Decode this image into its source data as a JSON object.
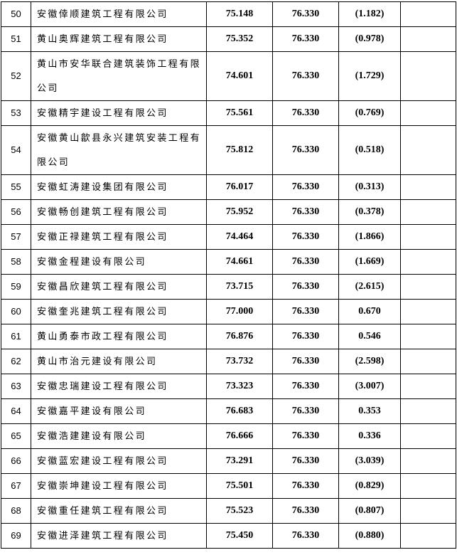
{
  "table": {
    "rows": [
      [
        "50",
        "安徽倖顺建筑工程有限公司",
        "75.148",
        "76.330",
        "(1.182)"
      ],
      [
        "51",
        "黄山奥辉建筑工程有限公司",
        "75.352",
        "76.330",
        "(0.978)"
      ],
      [
        "52",
        "黄山市安华联合建筑装饰工程有限公司",
        "74.601",
        "76.330",
        "(1.729)"
      ],
      [
        "53",
        "安徽精宇建设工程有限公司",
        "75.561",
        "76.330",
        "(0.769)"
      ],
      [
        "54",
        "安徽黄山歙县永兴建筑安装工程有限公司",
        "75.812",
        "76.330",
        "(0.518)"
      ],
      [
        "55",
        "安徽虹涛建设集团有限公司",
        "76.017",
        "76.330",
        "(0.313)"
      ],
      [
        "56",
        "安徽畅创建筑工程有限公司",
        "75.952",
        "76.330",
        "(0.378)"
      ],
      [
        "57",
        "安徽正禄建筑工程有限公司",
        "74.464",
        "76.330",
        "(1.866)"
      ],
      [
        "58",
        "安徽金程建设有限公司",
        "74.661",
        "76.330",
        "(1.669)"
      ],
      [
        "59",
        "安徽昌欣建筑工程有限公司",
        "73.715",
        "76.330",
        "(2.615)"
      ],
      [
        "60",
        "安徽奎兆建筑工程有限公司",
        "77.000",
        "76.330",
        "0.670"
      ],
      [
        "61",
        "黄山勇泰市政工程有限公司",
        "76.876",
        "76.330",
        "0.546"
      ],
      [
        "62",
        "黄山市治元建设有限公司",
        "73.732",
        "76.330",
        "(2.598)"
      ],
      [
        "63",
        "安徽忠瑞建设工程有限公司",
        "73.323",
        "76.330",
        "(3.007)"
      ],
      [
        "64",
        "安徽嘉平建设有限公司",
        "76.683",
        "76.330",
        "0.353"
      ],
      [
        "65",
        "安徽浩建建设有限公司",
        "76.666",
        "76.330",
        "0.336"
      ],
      [
        "66",
        "安徽蓝宏建设工程有限公司",
        "73.291",
        "76.330",
        "(3.039)"
      ],
      [
        "67",
        "安徽崇坤建设工程有限公司",
        "75.501",
        "76.330",
        "(0.829)"
      ],
      [
        "68",
        "安徽重任建筑工程有限公司",
        "75.523",
        "76.330",
        "(0.807)"
      ],
      [
        "69",
        "安徽进泽建筑工程有限公司",
        "75.450",
        "76.330",
        "(0.880)"
      ]
    ]
  }
}
